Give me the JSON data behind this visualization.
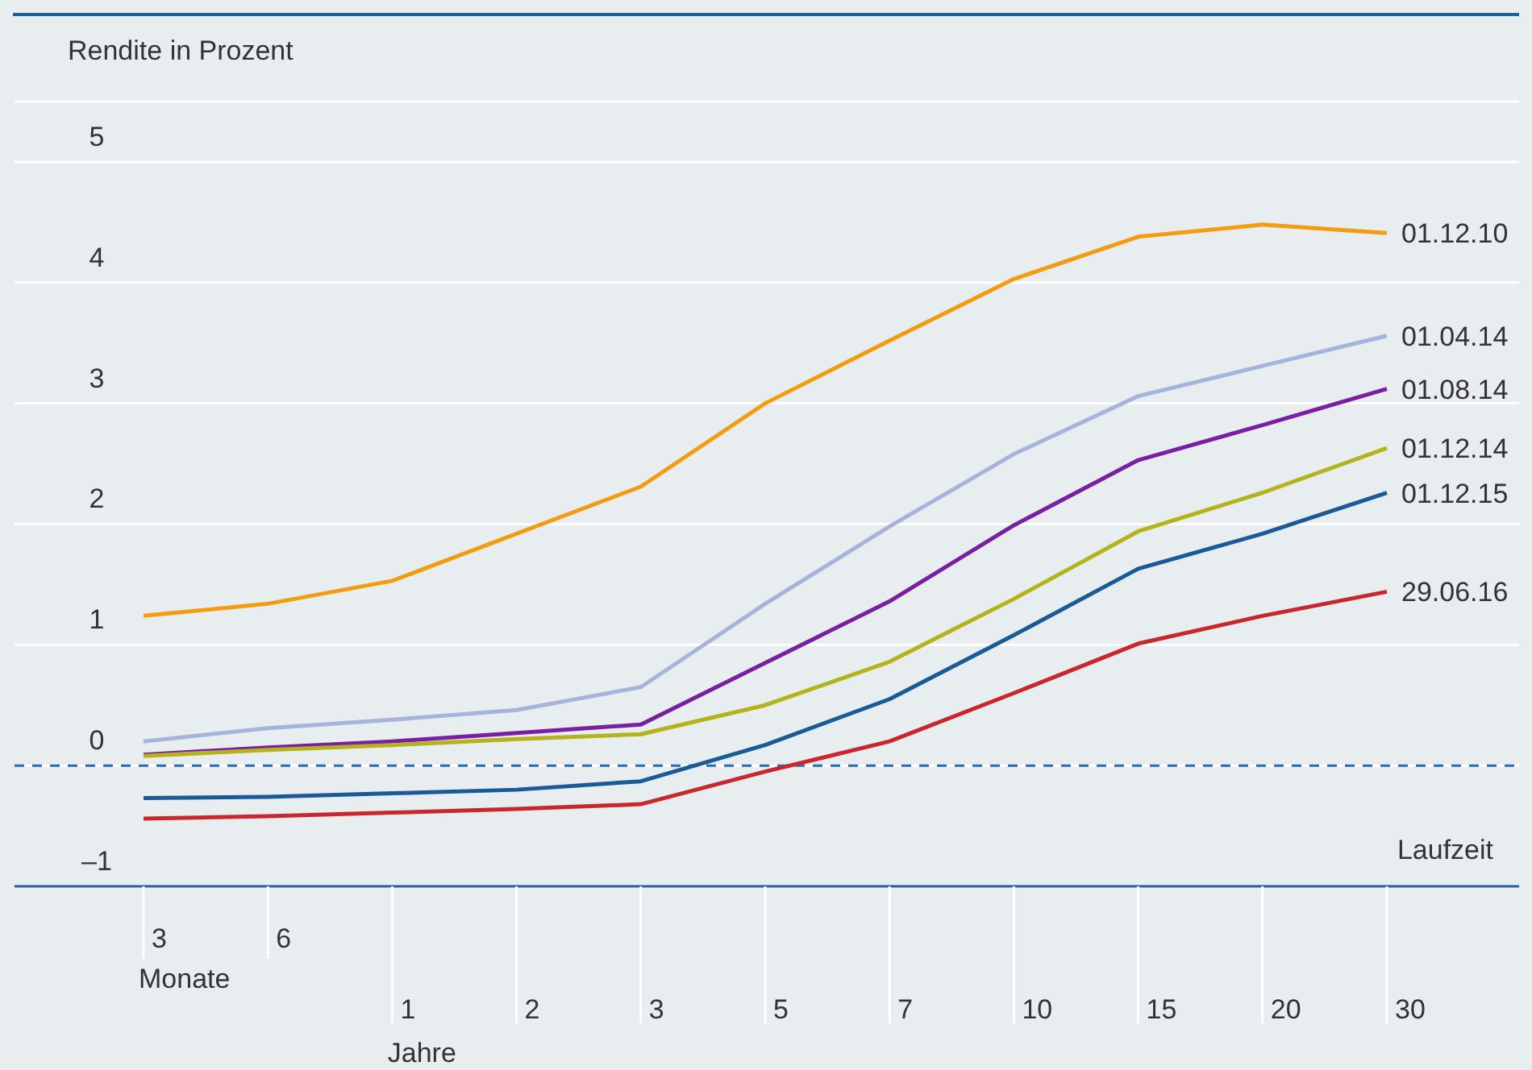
{
  "chart_data": {
    "type": "line",
    "ylabel": "Rendite in Prozent",
    "xlabel": "Laufzeit",
    "categories": [
      "3",
      "6",
      "1",
      "2",
      "3",
      "5",
      "7",
      "10",
      "15",
      "20",
      "30"
    ],
    "annotations": [
      "Monate",
      "Jahre"
    ],
    "series": [
      {
        "name": "01.12.10",
        "color": "#f29c12",
        "values": [
          1.24,
          1.34,
          1.53,
          1.92,
          2.31,
          3.0,
          3.52,
          4.03,
          4.38,
          4.48,
          4.41
        ]
      },
      {
        "name": "01.04.14",
        "color": "#a6b4dc",
        "values": [
          0.2,
          0.31,
          0.38,
          0.46,
          0.65,
          1.34,
          1.98,
          2.58,
          3.06,
          3.31,
          3.56
        ]
      },
      {
        "name": "01.08.14",
        "color": "#7a1fa2",
        "values": [
          0.09,
          0.15,
          0.2,
          0.27,
          0.34,
          0.85,
          1.36,
          1.99,
          2.53,
          2.82,
          3.12
        ]
      },
      {
        "name": "01.12.14",
        "color": "#b5b31a",
        "values": [
          0.08,
          0.13,
          0.17,
          0.22,
          0.26,
          0.5,
          0.86,
          1.38,
          1.94,
          2.26,
          2.63
        ]
      },
      {
        "name": "01.12.15",
        "color": "#1a5a96",
        "values": [
          -0.27,
          -0.26,
          -0.23,
          -0.2,
          -0.13,
          0.17,
          0.55,
          1.08,
          1.63,
          1.92,
          2.26
        ]
      },
      {
        "name": "29.06.16",
        "color": "#c8282d",
        "values": [
          -0.44,
          -0.42,
          -0.39,
          -0.36,
          -0.32,
          -0.05,
          0.2,
          0.6,
          1.01,
          1.24,
          1.44
        ]
      }
    ],
    "ylim": [
      -1,
      5.5
    ],
    "yticks": [
      {
        "value": -1,
        "label": "–1"
      },
      0,
      1,
      2,
      3,
      4,
      5
    ],
    "grid": "y",
    "ref_lines": [
      {
        "axis": "y",
        "value": 0,
        "color": "#2a6bb0",
        "line_style": "dashed"
      }
    ]
  }
}
